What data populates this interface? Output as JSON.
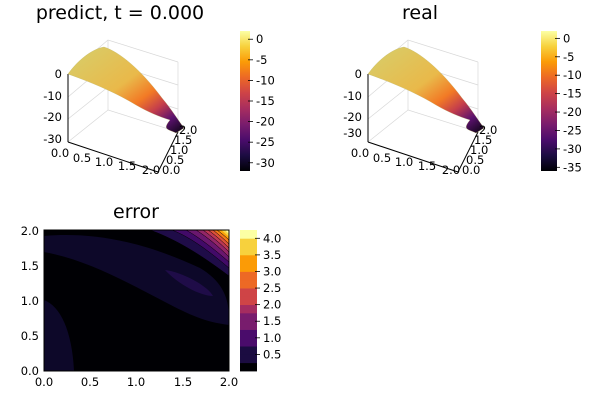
{
  "chart_data": [
    {
      "type": "surface",
      "title": "predict, t = 0.000",
      "x_range": [
        0,
        2
      ],
      "y_range": [
        0,
        2
      ],
      "x_ticks": [
        "0.0",
        "0.5",
        "1.0",
        "1.5",
        "2.0"
      ],
      "y_ticks": [
        "0.0",
        "0.5",
        "1.0",
        "1.5",
        "2.0"
      ],
      "z_range": [
        -32,
        2
      ],
      "z_ticks": [
        "0",
        "-10",
        "-20",
        "-30"
      ],
      "colorbar_range": [
        -32,
        2
      ],
      "colorbar_ticks": [
        "0",
        "-5",
        "-10",
        "-15",
        "-20",
        "-25",
        "-30"
      ],
      "colormap": "inferno",
      "grid": true
    },
    {
      "type": "surface",
      "title": "real",
      "x_range": [
        0,
        2
      ],
      "y_range": [
        0,
        2
      ],
      "x_ticks": [
        "0.0",
        "0.5",
        "1.0",
        "1.5",
        "2.0"
      ],
      "y_ticks": [
        "0.0",
        "0.5",
        "1.0",
        "1.5",
        "2.0"
      ],
      "z_range": [
        -35,
        2
      ],
      "z_ticks": [
        "0",
        "-10",
        "-20",
        "-30"
      ],
      "colorbar_range": [
        -36,
        2
      ],
      "colorbar_ticks": [
        "0",
        "-5",
        "-10",
        "-15",
        "-20",
        "-25",
        "-30",
        "-35"
      ],
      "colormap": "inferno",
      "grid": true
    },
    {
      "type": "contourf",
      "title": "error",
      "x_range": [
        0,
        2
      ],
      "y_range": [
        0,
        2
      ],
      "x_ticks": [
        "0.0",
        "0.5",
        "1.0",
        "1.5",
        "2.0"
      ],
      "y_ticks": [
        "0.0",
        "0.5",
        "1.0",
        "1.5",
        "2.0"
      ],
      "levels": [
        0,
        0.25,
        0.5,
        0.75,
        1.0,
        1.25,
        1.5,
        1.75,
        2.0,
        2.25,
        2.5,
        2.75,
        3.0,
        3.25,
        3.5,
        3.75,
        4.0,
        4.25
      ],
      "colorbar_range": [
        0,
        4.25
      ],
      "colorbar_ticks": [
        "0.5",
        "1.0",
        "1.5",
        "2.0",
        "2.5",
        "3.0",
        "3.5",
        "4.0"
      ],
      "colormap": "inferno"
    }
  ],
  "colors": {
    "colormap_stops": [
      "#000004",
      "#1b0c41",
      "#4a0c6b",
      "#781c6d",
      "#a52c60",
      "#cf4446",
      "#ed6925",
      "#fb9b06",
      "#f7d13d",
      "#fcffa4"
    ]
  }
}
